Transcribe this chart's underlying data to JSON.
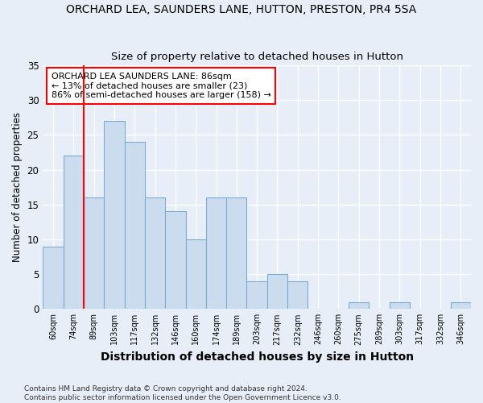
{
  "title": "ORCHARD LEA, SAUNDERS LANE, HUTTON, PRESTON, PR4 5SA",
  "subtitle": "Size of property relative to detached houses in Hutton",
  "xlabel": "Distribution of detached houses by size in Hutton",
  "ylabel": "Number of detached properties",
  "categories": [
    "60sqm",
    "74sqm",
    "89sqm",
    "103sqm",
    "117sqm",
    "132sqm",
    "146sqm",
    "160sqm",
    "174sqm",
    "189sqm",
    "203sqm",
    "217sqm",
    "232sqm",
    "246sqm",
    "260sqm",
    "275sqm",
    "289sqm",
    "303sqm",
    "317sqm",
    "332sqm",
    "346sqm"
  ],
  "values": [
    9,
    22,
    16,
    27,
    24,
    16,
    14,
    10,
    16,
    16,
    4,
    5,
    4,
    0,
    0,
    1,
    0,
    1,
    0,
    0,
    1
  ],
  "bar_color": "#ccdcef",
  "bar_edge_color": "#7badd4",
  "ref_line_index": 2,
  "annotation_text": "ORCHARD LEA SAUNDERS LANE: 86sqm\n← 13% of detached houses are smaller (23)\n86% of semi-detached houses are larger (158) →",
  "annotation_box_color": "white",
  "annotation_box_edge_color": "red",
  "ref_line_color": "red",
  "background_color": "#e8eef8",
  "grid_color": "white",
  "ylim": [
    0,
    35
  ],
  "yticks": [
    0,
    5,
    10,
    15,
    20,
    25,
    30,
    35
  ],
  "footer": "Contains HM Land Registry data © Crown copyright and database right 2024.\nContains public sector information licensed under the Open Government Licence v3.0."
}
